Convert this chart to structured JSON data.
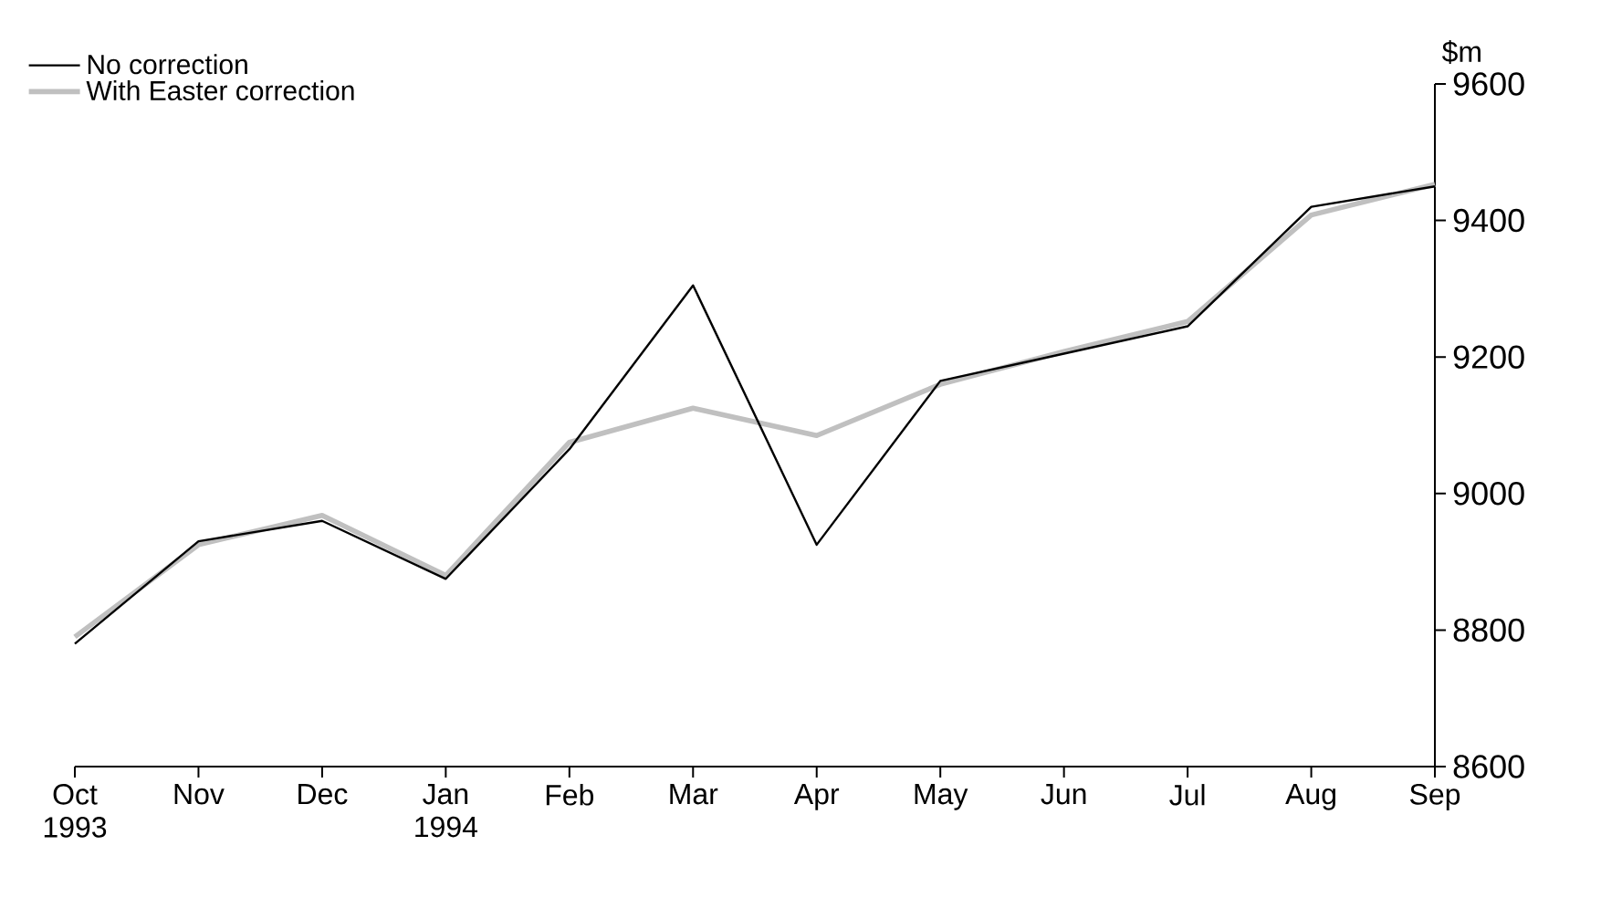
{
  "chart_data": {
    "type": "line",
    "ylabel": "$m",
    "categories": [
      "Oct 1993",
      "Nov",
      "Dec",
      "Jan 1994",
      "Feb",
      "Mar",
      "Apr",
      "May",
      "Jun",
      "Jul",
      "Aug",
      "Sep"
    ],
    "series": [
      {
        "name": "No correction",
        "color": "#000000",
        "values": [
          8780,
          8930,
          8960,
          8875,
          9065,
          9305,
          8925,
          9165,
          9205,
          9245,
          9420,
          9450
        ]
      },
      {
        "name": "With Easter correction",
        "color": "#c0c0c0",
        "values": [
          8790,
          8925,
          8968,
          8880,
          9075,
          9125,
          9085,
          9160,
          9208,
          9252,
          9408,
          9453
        ]
      }
    ],
    "ylim": [
      8600,
      9600
    ],
    "yticks": [
      8600,
      8800,
      9000,
      9200,
      9400,
      9600
    ],
    "legend": "top left",
    "grid": false,
    "marker": "none",
    "line_style": "solid"
  }
}
